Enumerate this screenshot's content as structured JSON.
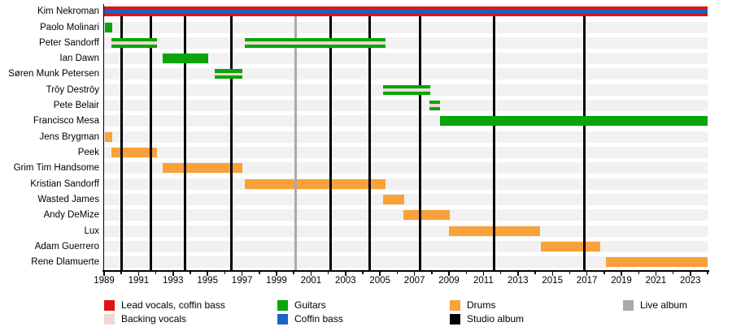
{
  "chart_data": {
    "type": "timeline",
    "description": "Band membership timeline (gantt-style), years 1989-2024",
    "x_axis": {
      "min": 1989,
      "max": 2024,
      "minor_tick_interval": 1,
      "labeled_years": [
        1989,
        1991,
        1993,
        1995,
        1997,
        1999,
        2001,
        2003,
        2005,
        2007,
        2009,
        2011,
        2013,
        2015,
        2017,
        2019,
        2021,
        2023
      ]
    },
    "rows": [
      {
        "name": "Kim Nekroman",
        "role": "lead_vocals_coffin_bass",
        "periods": [
          {
            "start": 1989,
            "end": 2024
          }
        ]
      },
      {
        "name": "Paolo Molinari",
        "role": "guitars",
        "periods": [
          {
            "start": 1989.05,
            "end": 1989.45
          }
        ]
      },
      {
        "name": "Peter Sandorff",
        "role": "guitars_backing",
        "periods": [
          {
            "start": 1989.4,
            "end": 1992.05
          },
          {
            "start": 1997.15,
            "end": 2005.3
          }
        ]
      },
      {
        "name": "Ian Dawn",
        "role": "guitars",
        "periods": [
          {
            "start": 1992.4,
            "end": 1995.05
          }
        ]
      },
      {
        "name": "Søren Munk Petersen",
        "role": "guitars_backing",
        "periods": [
          {
            "start": 1995.4,
            "end": 1997.0
          }
        ]
      },
      {
        "name": "Trōy Destrōy",
        "role": "guitars_backing",
        "periods": [
          {
            "start": 2005.2,
            "end": 2007.9
          }
        ]
      },
      {
        "name": "Pete Belair",
        "role": "guitars_backing",
        "periods": [
          {
            "start": 2007.85,
            "end": 2008.5
          }
        ]
      },
      {
        "name": "Francisco Mesa",
        "role": "guitars",
        "periods": [
          {
            "start": 2008.5,
            "end": 2024
          }
        ]
      },
      {
        "name": "Jens Brygman",
        "role": "drums",
        "periods": [
          {
            "start": 1989.05,
            "end": 1989.45
          }
        ]
      },
      {
        "name": "Peek",
        "role": "drums",
        "periods": [
          {
            "start": 1989.4,
            "end": 1992.05
          }
        ]
      },
      {
        "name": "Grim Tim Handsome",
        "role": "drums",
        "periods": [
          {
            "start": 1992.4,
            "end": 1997.0
          }
        ]
      },
      {
        "name": "Kristian Sandorff",
        "role": "drums",
        "periods": [
          {
            "start": 1997.15,
            "end": 2005.3
          }
        ]
      },
      {
        "name": "Wasted James",
        "role": "drums",
        "periods": [
          {
            "start": 2005.2,
            "end": 2006.4
          }
        ]
      },
      {
        "name": "Andy DeMize",
        "role": "drums",
        "periods": [
          {
            "start": 2006.35,
            "end": 2009.05
          }
        ]
      },
      {
        "name": "Lux",
        "role": "drums",
        "periods": [
          {
            "start": 2009.0,
            "end": 2014.3
          }
        ]
      },
      {
        "name": "Adam Guerrero",
        "role": "drums",
        "periods": [
          {
            "start": 2014.35,
            "end": 2017.8
          }
        ]
      },
      {
        "name": "Rene Dlamuerte",
        "role": "drums",
        "periods": [
          {
            "start": 2018.1,
            "end": 2024
          }
        ]
      }
    ],
    "markers": {
      "studio_albums": [
        1990.0,
        1991.7,
        1993.7,
        1996.4,
        2002.15,
        2004.4,
        2007.3,
        2011.6,
        2016.85
      ],
      "live_albums": [
        2000.1
      ]
    },
    "legend": [
      {
        "label": "Lead vocals, coffin bass",
        "color_key": "red",
        "col": 0,
        "row": 0
      },
      {
        "label": "Backing vocals",
        "color_key": "pink",
        "col": 0,
        "row": 1
      },
      {
        "label": "Guitars",
        "color_key": "green",
        "col": 1,
        "row": 0
      },
      {
        "label": "Coffin bass",
        "color_key": "blue",
        "col": 1,
        "row": 1
      },
      {
        "label": "Drums",
        "color_key": "orange",
        "col": 2,
        "row": 0
      },
      {
        "label": "Studio album",
        "color_key": "black",
        "col": 2,
        "row": 1
      },
      {
        "label": "Live album",
        "color_key": "gray",
        "col": 3,
        "row": 0
      }
    ]
  },
  "colors": {
    "red": "#e11414",
    "blue": "#1b63c4",
    "green": "#09a509",
    "orange": "#f9a13a",
    "pink": "#f0d8d0",
    "gray": "#aaaaaa",
    "black": "#000000",
    "row_band": "#f1f1f1",
    "axis": "#000000",
    "text": "#000000"
  }
}
